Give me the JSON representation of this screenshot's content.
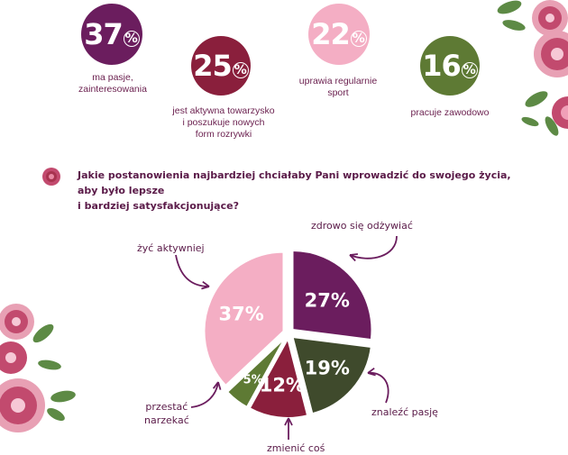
{
  "stats": [
    {
      "value": "37",
      "text_lines": [
        "ma pasje,",
        "zainteresowania"
      ],
      "color": "#6b1d5e"
    },
    {
      "value": "25",
      "text_lines": [
        "jest aktywna towarzysko",
        "i poszukuje nowych",
        "form rozrywki"
      ],
      "color": "#8a1f3c"
    },
    {
      "value": "22",
      "text_lines": [
        "uprawia regularnie",
        "sport"
      ],
      "color": "#f4aec4"
    },
    {
      "value": "16",
      "text_lines": [
        "pracuje zawodowo"
      ],
      "color": "#5e7a34"
    }
  ],
  "question": {
    "line1": "Jakie postanowienia najbardziej chciałaby Pani wprowadzić do swojego życia, aby było lepsze",
    "line2": "i bardziej satysfakcjonujące?"
  },
  "chart_data": {
    "type": "pie",
    "categories": [
      "zdrowo się odżywiać",
      "znaleźć pasję",
      "zmienić coś",
      "przestać narzekać",
      "żyć aktywniej"
    ],
    "values": [
      27,
      19,
      12,
      5,
      37
    ],
    "value_labels": [
      "27%",
      "19%",
      "12%",
      "5%",
      "37%"
    ],
    "colors": [
      "#6b1d5e",
      "#3f4a2c",
      "#8a1f3c",
      "#5e7a34",
      "#f4aec4"
    ]
  },
  "labels": {
    "zdrowo": "zdrowo się odżywiać",
    "zyc": "żyć aktywniej",
    "pasje": "znaleźć pasję",
    "narzekac_1": "przestać",
    "narzekac_2": "narzekać",
    "zmienic": "zmienić coś"
  }
}
